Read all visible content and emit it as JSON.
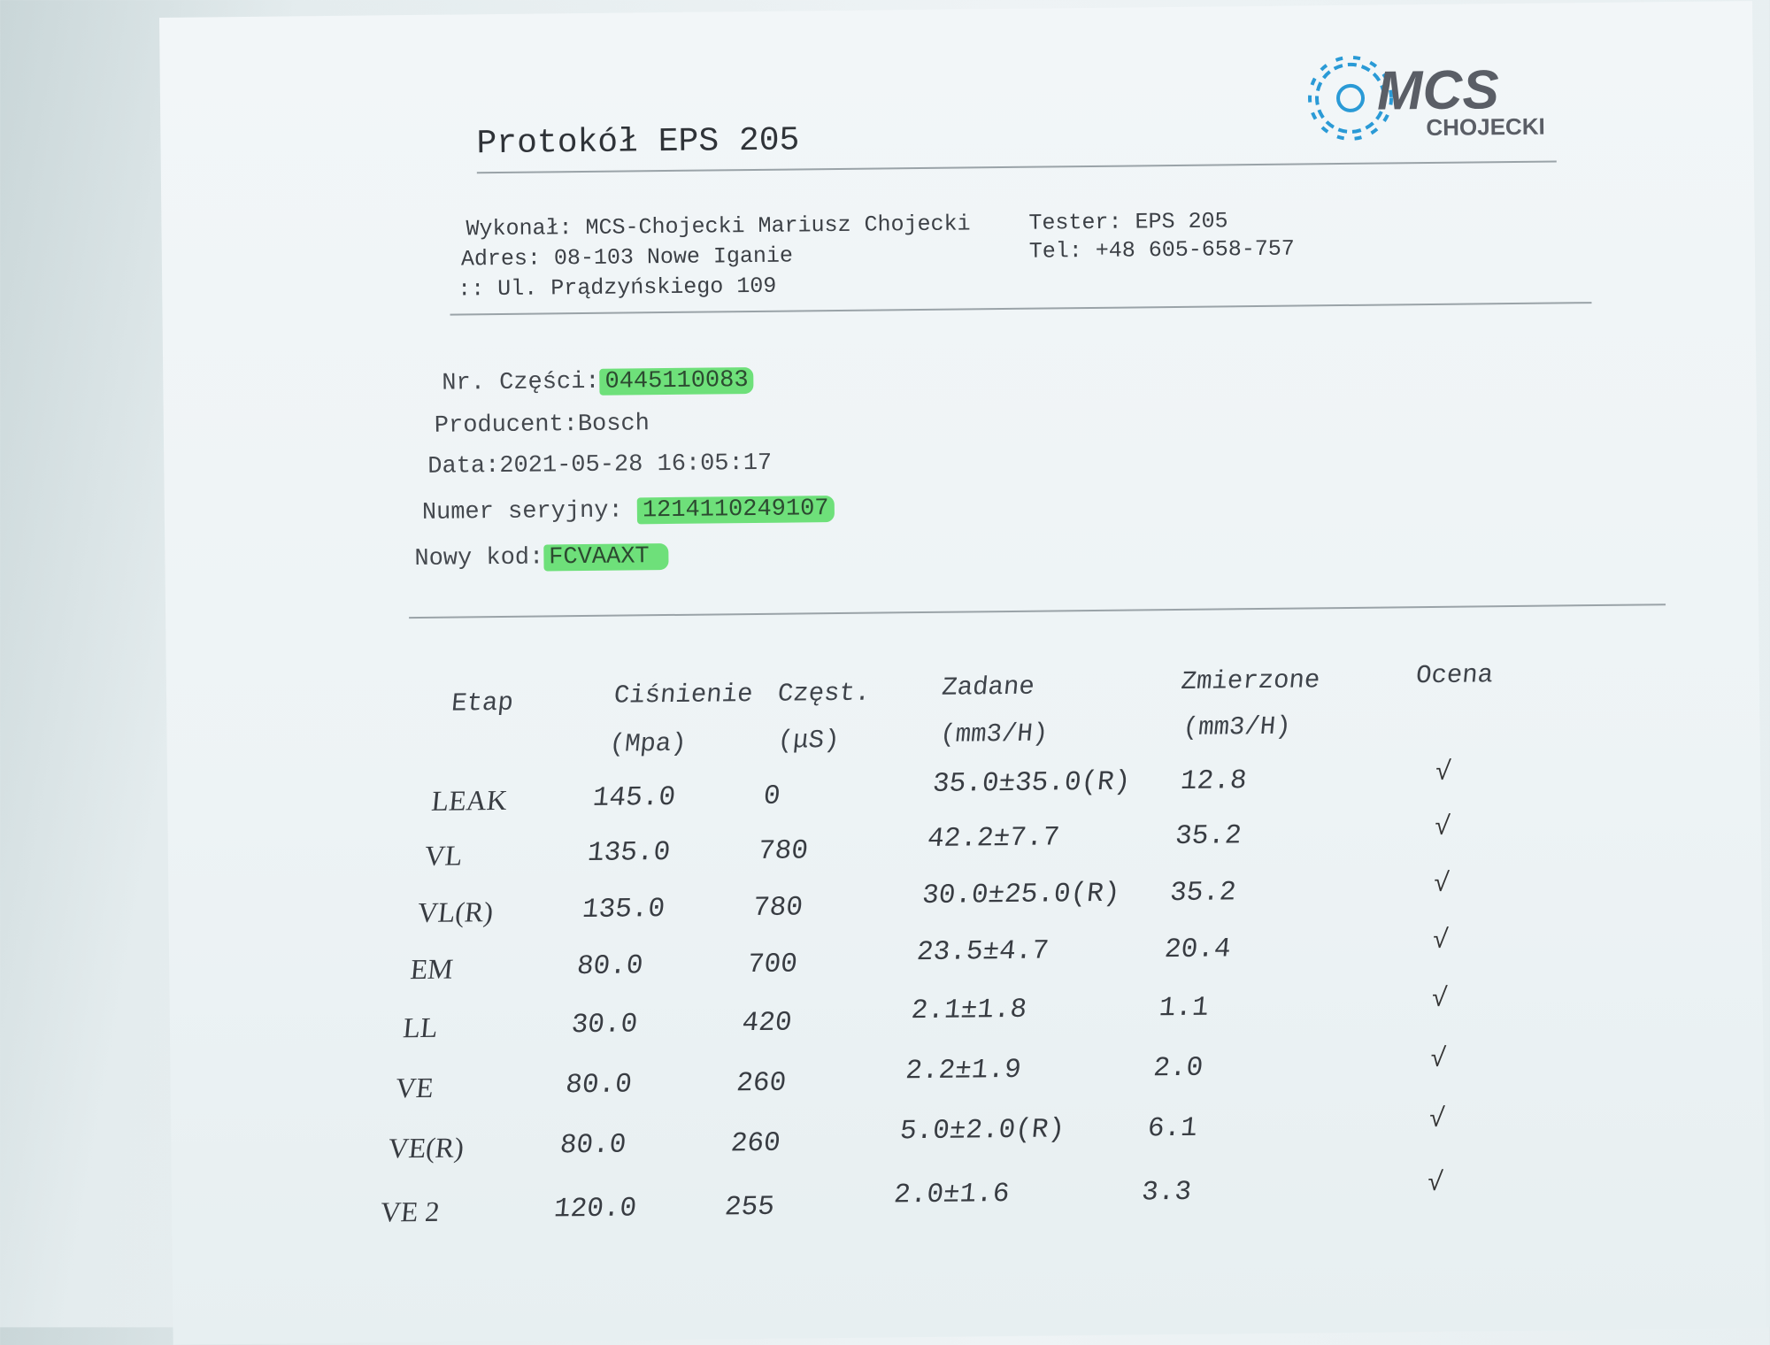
{
  "header": {
    "title": "Protokół EPS 205",
    "logo": {
      "text_main": "MCS",
      "text_sub": "CHOJECKI",
      "gear_color": "#2a9ad6",
      "text_color": "#5a5e66"
    },
    "performed_by": "Wykonał: MCS-Chojecki Mariusz Chojecki",
    "address_line1": "Adres: 08-103 Nowe Iganie",
    "address_line2": ":: Ul. Prądzyńskiego 109",
    "tester": "Tester: EPS 205",
    "phone": "Tel: +48 605-658-757"
  },
  "part": {
    "part_no_label": "Nr. Części:",
    "part_no": "0445110083",
    "producer_label": "Producent:",
    "producer": "Bosch",
    "date_label": "Data:",
    "date": "2021-05-28 16:05:17",
    "serial_label": "Numer seryjny:",
    "serial": "1214110249107",
    "new_code_label": "Nowy kod:",
    "new_code": "FCVAAXT",
    "highlight_color": "#6ee07a"
  },
  "table": {
    "headers": [
      {
        "line1": "Etap",
        "line2": ""
      },
      {
        "line1": "Ciśnienie",
        "line2": "(Mpa)"
      },
      {
        "line1": "Częst.",
        "line2": "(μS)"
      },
      {
        "line1": "Zadane",
        "line2": "(mm3/H)"
      },
      {
        "line1": "Zmierzone",
        "line2": "(mm3/H)"
      },
      {
        "line1": "Ocena",
        "line2": ""
      }
    ],
    "rows": [
      {
        "etap": "LEAK",
        "pressure": "145.0",
        "freq": "0",
        "target": "35.0±35.0(R)",
        "measured": "12.8",
        "result": "√"
      },
      {
        "etap": "VL",
        "pressure": "135.0",
        "freq": "780",
        "target": "42.2±7.7",
        "measured": "35.2",
        "result": "√"
      },
      {
        "etap": "VL(R)",
        "pressure": "135.0",
        "freq": "780",
        "target": "30.0±25.0(R)",
        "measured": "35.2",
        "result": "√"
      },
      {
        "etap": "EM",
        "pressure": "80.0",
        "freq": "700",
        "target": "23.5±4.7",
        "measured": "20.4",
        "result": "√"
      },
      {
        "etap": "LL",
        "pressure": "30.0",
        "freq": "420",
        "target": "2.1±1.8",
        "measured": "1.1",
        "result": "√"
      },
      {
        "etap": "VE",
        "pressure": "80.0",
        "freq": "260",
        "target": "2.2±1.9",
        "measured": "2.0",
        "result": "√"
      },
      {
        "etap": "VE(R)",
        "pressure": "80.0",
        "freq": "260",
        "target": "5.0±2.0(R)",
        "measured": "6.1",
        "result": "√"
      },
      {
        "etap": "VE 2",
        "pressure": "120.0",
        "freq": "255",
        "target": "2.0±1.6",
        "measured": "3.3",
        "result": "√"
      }
    ]
  }
}
